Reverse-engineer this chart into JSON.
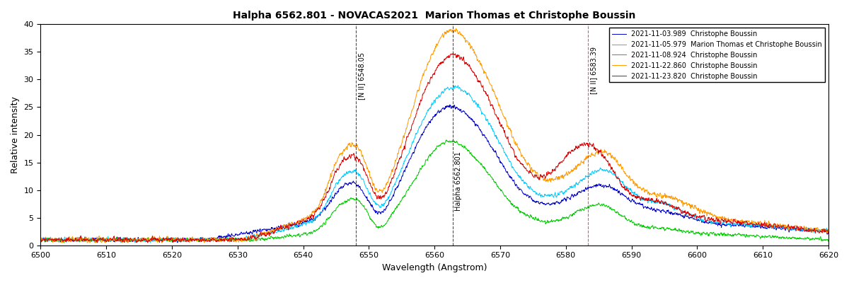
{
  "title": "Halpha 6562.801 - NOVACAS2021  Marion Thomas et Christophe Boussin",
  "xlabel": "Wavelength (Angstrom)",
  "ylabel": "Relative intensity",
  "xlim": [
    6500,
    6620
  ],
  "ylim": [
    0,
    40
  ],
  "yticks": [
    0,
    5,
    10,
    15,
    20,
    25,
    30,
    35,
    40
  ],
  "xticks": [
    6500,
    6510,
    6520,
    6530,
    6540,
    6550,
    6560,
    6570,
    6580,
    6590,
    6600,
    6610,
    6620
  ],
  "vline1_x": 6548.05,
  "vline1_label": "[N II] 6548.05",
  "vline2_x": 6562.801,
  "vline2_label": "Halpha 6562.801",
  "vline3_x": 6583.39,
  "vline3_label": "[N II] 6583.39",
  "legend_entries": [
    "2021-11-03.989  Christophe Boussin",
    "2021-11-05.979  Marion Thomas et Christophe Boussin",
    "2021-11-08.924  Christophe Boussin",
    "2021-11-22.860  Christophe Boussin",
    "2021-11-23.820  Christophe Boussin"
  ],
  "colors": [
    "#0000cc",
    "#00ccff",
    "#00cc00",
    "#ff9900",
    "#dd0000"
  ],
  "figsize": [
    12,
    4
  ],
  "dpi": 100
}
